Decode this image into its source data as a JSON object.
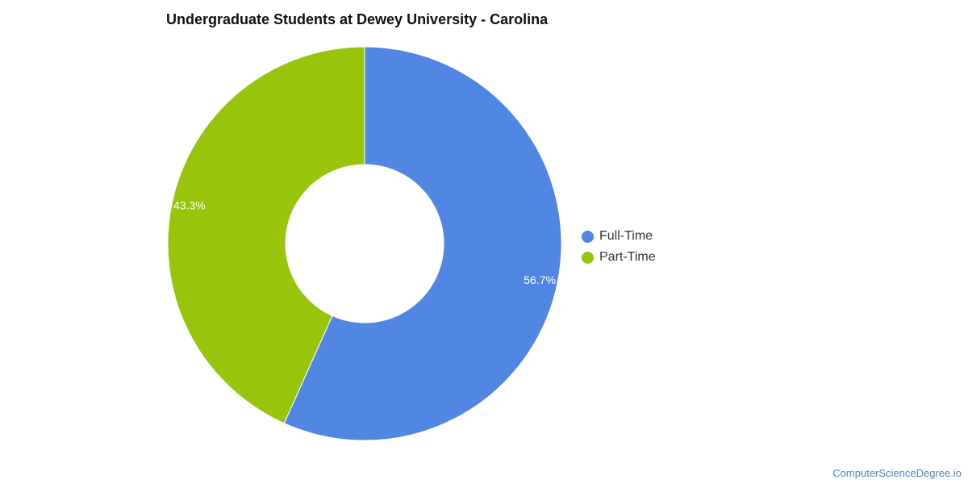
{
  "chart_data": {
    "type": "pie",
    "title": "Undergraduate Students at Dewey University - Carolina",
    "donut": true,
    "legend_position": "right",
    "categories": [
      "Full-Time",
      "Part-Time"
    ],
    "values": [
      56.7,
      43.3
    ],
    "data_labels": [
      "56.7%",
      "43.3%"
    ],
    "colors": [
      "#5286e3",
      "#98c40c"
    ]
  },
  "watermark": "ComputerScienceDegree.io"
}
